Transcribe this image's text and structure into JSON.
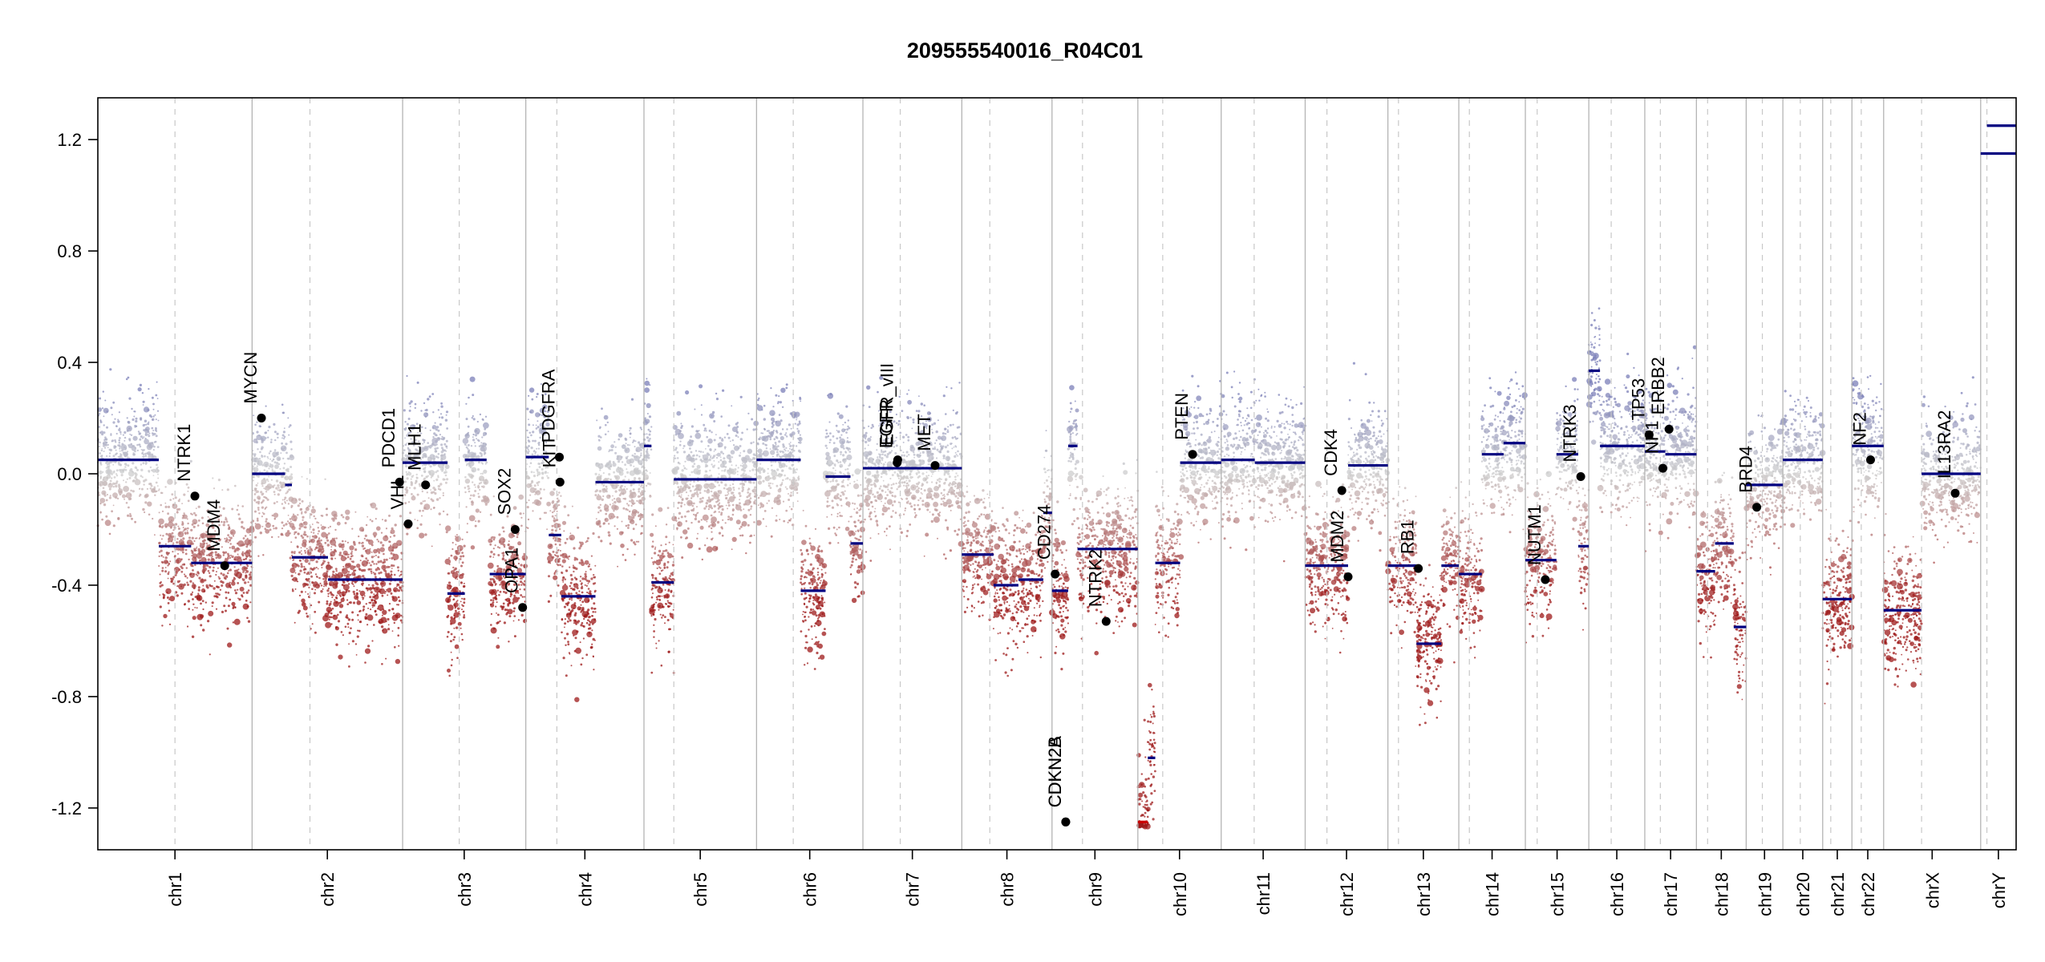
{
  "chart_data": {
    "type": "scatter",
    "title": "209555540016_R04C01",
    "xlabel": "",
    "ylabel": "",
    "ylim": [
      -1.35,
      1.35
    ],
    "yticks": [
      -1.2,
      -0.8,
      -0.4,
      0.0,
      0.4,
      0.8,
      1.2
    ],
    "ytick_labels": [
      "-1.2",
      "-0.8",
      "-0.4",
      "0.0",
      "0.4",
      "0.8",
      "1.2"
    ],
    "grid": false,
    "legend": "none",
    "colors": {
      "gain": "#7b7fb8",
      "neutral": "#c8c8c8",
      "loss": "#9e1a1a",
      "segment": "#000080",
      "boundary": "#b4b4b4"
    },
    "chromosomes": [
      {
        "name": "chr1",
        "start": 0,
        "end": 248,
        "centromere": 124
      },
      {
        "name": "chr2",
        "start": 248,
        "end": 490,
        "centromere": 341
      },
      {
        "name": "chr3",
        "start": 490,
        "end": 688,
        "centromere": 581
      },
      {
        "name": "chr4",
        "start": 688,
        "end": 878,
        "centromere": 738
      },
      {
        "name": "chr5",
        "start": 878,
        "end": 1059,
        "centromere": 926
      },
      {
        "name": "chr6",
        "start": 1059,
        "end": 1230,
        "centromere": 1118
      },
      {
        "name": "chr7",
        "start": 1230,
        "end": 1389,
        "centromere": 1290
      },
      {
        "name": "chr8",
        "start": 1389,
        "end": 1534,
        "centromere": 1434
      },
      {
        "name": "chr9",
        "start": 1534,
        "end": 1672,
        "centromere": 1583
      },
      {
        "name": "chr10",
        "start": 1672,
        "end": 1806,
        "centromere": 1712
      },
      {
        "name": "chr11",
        "start": 1806,
        "end": 1941,
        "centromere": 1859
      },
      {
        "name": "chr12",
        "start": 1941,
        "end": 2074,
        "centromere": 1976
      },
      {
        "name": "chr13",
        "start": 2074,
        "end": 2188,
        "centromere": 2091
      },
      {
        "name": "chr14",
        "start": 2188,
        "end": 2295,
        "centromere": 2205
      },
      {
        "name": "chr15",
        "start": 2295,
        "end": 2397,
        "centromere": 2314
      },
      {
        "name": "chr16",
        "start": 2397,
        "end": 2487,
        "centromere": 2433
      },
      {
        "name": "chr17",
        "start": 2487,
        "end": 2570,
        "centromere": 2512
      },
      {
        "name": "chr18",
        "start": 2570,
        "end": 2650,
        "centromere": 2588
      },
      {
        "name": "chr19",
        "start": 2650,
        "end": 2709,
        "centromere": 2676
      },
      {
        "name": "chr20",
        "start": 2709,
        "end": 2773,
        "centromere": 2737
      },
      {
        "name": "chr21",
        "start": 2773,
        "end": 2820,
        "centromere": 2786
      },
      {
        "name": "chr22",
        "start": 2820,
        "end": 2871,
        "centromere": 2835
      },
      {
        "name": "chrX",
        "start": 2871,
        "end": 3027,
        "centromere": 2932
      },
      {
        "name": "chrY",
        "start": 3027,
        "end": 3084,
        "centromere": 3037
      }
    ],
    "segments": [
      {
        "start": 0,
        "end": 98,
        "value": 0.05
      },
      {
        "start": 98,
        "end": 150,
        "value": -0.26
      },
      {
        "start": 150,
        "end": 248,
        "value": -0.32
      },
      {
        "start": 248,
        "end": 301,
        "value": 0.0
      },
      {
        "start": 301,
        "end": 312,
        "value": -0.04
      },
      {
        "start": 312,
        "end": 336,
        "value": -0.3
      },
      {
        "start": 336,
        "end": 370,
        "value": -0.3
      },
      {
        "start": 370,
        "end": 440,
        "value": -0.38
      },
      {
        "start": 440,
        "end": 490,
        "value": -0.38
      },
      {
        "start": 490,
        "end": 562,
        "value": 0.04
      },
      {
        "start": 562,
        "end": 590,
        "value": -0.43
      },
      {
        "start": 590,
        "end": 625,
        "value": 0.05
      },
      {
        "start": 630,
        "end": 688,
        "value": -0.36
      },
      {
        "start": 688,
        "end": 725,
        "value": 0.06
      },
      {
        "start": 725,
        "end": 745,
        "value": -0.22
      },
      {
        "start": 745,
        "end": 800,
        "value": -0.44
      },
      {
        "start": 800,
        "end": 878,
        "value": -0.03
      },
      {
        "start": 878,
        "end": 890,
        "value": 0.1
      },
      {
        "start": 890,
        "end": 926,
        "value": -0.39
      },
      {
        "start": 926,
        "end": 1059,
        "value": -0.02
      },
      {
        "start": 1059,
        "end": 1130,
        "value": 0.05
      },
      {
        "start": 1130,
        "end": 1170,
        "value": -0.42
      },
      {
        "start": 1170,
        "end": 1210,
        "value": -0.01
      },
      {
        "start": 1210,
        "end": 1230,
        "value": -0.25
      },
      {
        "start": 1230,
        "end": 1389,
        "value": 0.02
      },
      {
        "start": 1389,
        "end": 1440,
        "value": -0.29
      },
      {
        "start": 1440,
        "end": 1480,
        "value": -0.4
      },
      {
        "start": 1480,
        "end": 1520,
        "value": -0.38
      },
      {
        "start": 1520,
        "end": 1534,
        "value": -0.14
      },
      {
        "start": 1534,
        "end": 1560,
        "value": -0.42
      },
      {
        "start": 1560,
        "end": 1575,
        "value": 0.1
      },
      {
        "start": 1575,
        "end": 1672,
        "value": -0.27
      },
      {
        "start": 1672,
        "end": 1688,
        "value": -1.25
      },
      {
        "start": 1688,
        "end": 1700,
        "value": -1.02
      },
      {
        "start": 1700,
        "end": 1740,
        "value": -0.32
      },
      {
        "start": 1740,
        "end": 1806,
        "value": 0.04
      },
      {
        "start": 1806,
        "end": 1860,
        "value": 0.05
      },
      {
        "start": 1860,
        "end": 1941,
        "value": 0.04
      },
      {
        "start": 1941,
        "end": 2010,
        "value": -0.33
      },
      {
        "start": 2010,
        "end": 2074,
        "value": 0.03
      },
      {
        "start": 2074,
        "end": 2120,
        "value": -0.33
      },
      {
        "start": 2120,
        "end": 2160,
        "value": -0.61
      },
      {
        "start": 2160,
        "end": 2188,
        "value": -0.33
      },
      {
        "start": 2188,
        "end": 2225,
        "value": -0.36
      },
      {
        "start": 2225,
        "end": 2260,
        "value": 0.07
      },
      {
        "start": 2260,
        "end": 2295,
        "value": 0.11
      },
      {
        "start": 2295,
        "end": 2345,
        "value": -0.31
      },
      {
        "start": 2345,
        "end": 2380,
        "value": 0.07
      },
      {
        "start": 2380,
        "end": 2397,
        "value": -0.26
      },
      {
        "start": 2397,
        "end": 2415,
        "value": 0.37
      },
      {
        "start": 2415,
        "end": 2487,
        "value": 0.1
      },
      {
        "start": 2487,
        "end": 2520,
        "value": 0.08
      },
      {
        "start": 2520,
        "end": 2570,
        "value": 0.07
      },
      {
        "start": 2570,
        "end": 2600,
        "value": -0.35
      },
      {
        "start": 2600,
        "end": 2630,
        "value": -0.25
      },
      {
        "start": 2630,
        "end": 2650,
        "value": -0.55
      },
      {
        "start": 2650,
        "end": 2709,
        "value": -0.04
      },
      {
        "start": 2709,
        "end": 2773,
        "value": 0.05
      },
      {
        "start": 2773,
        "end": 2820,
        "value": -0.45
      },
      {
        "start": 2820,
        "end": 2871,
        "value": 0.1
      },
      {
        "start": 2871,
        "end": 2932,
        "value": -0.49
      },
      {
        "start": 2932,
        "end": 3027,
        "value": 0.0
      },
      {
        "start": 3027,
        "end": 3084,
        "value": 1.15
      },
      {
        "start": 3037,
        "end": 3084,
        "value": 1.25
      }
    ],
    "genes": [
      {
        "name": "NTRK1",
        "pos": 156,
        "value": -0.08
      },
      {
        "name": "MDM4",
        "pos": 204,
        "value": -0.33
      },
      {
        "name": "MYCN",
        "pos": 263,
        "value": 0.2
      },
      {
        "name": "PDCD1",
        "pos": 485,
        "value": -0.03
      },
      {
        "name": "VHL",
        "pos": 499,
        "value": -0.18
      },
      {
        "name": "MLH1",
        "pos": 527,
        "value": -0.04
      },
      {
        "name": "SOX2",
        "pos": 671,
        "value": -0.2
      },
      {
        "name": "OPA1",
        "pos": 683,
        "value": -0.48
      },
      {
        "name": "KIT",
        "pos": 743,
        "value": -0.03
      },
      {
        "name": "PDGFRA",
        "pos": 742,
        "value": 0.06
      },
      {
        "name": "EGFR",
        "pos": 1285,
        "value": 0.04
      },
      {
        "name": "EGFR_vIII",
        "pos": 1286,
        "value": 0.05
      },
      {
        "name": "MET",
        "pos": 1346,
        "value": 0.03
      },
      {
        "name": "CD274",
        "pos": 1539,
        "value": -0.36
      },
      {
        "name": "CDKN2B",
        "pos": 1556,
        "value": -1.25
      },
      {
        "name": "CDKN2A",
        "pos": 1556,
        "value": -1.25
      },
      {
        "name": "NTRK2",
        "pos": 1621,
        "value": -0.53
      },
      {
        "name": "PTEN",
        "pos": 1760,
        "value": 0.07
      },
      {
        "name": "CDK4",
        "pos": 2000,
        "value": -0.06
      },
      {
        "name": "MDM2",
        "pos": 2010,
        "value": -0.37
      },
      {
        "name": "RB1",
        "pos": 2123,
        "value": -0.34
      },
      {
        "name": "NUTM1",
        "pos": 2327,
        "value": -0.38
      },
      {
        "name": "NTRK3",
        "pos": 2384,
        "value": -0.01
      },
      {
        "name": "TP53",
        "pos": 2494,
        "value": 0.14
      },
      {
        "name": "NF1",
        "pos": 2516,
        "value": 0.02
      },
      {
        "name": "ERBB2",
        "pos": 2526,
        "value": 0.16
      },
      {
        "name": "BRD4",
        "pos": 2667,
        "value": -0.12
      },
      {
        "name": "NF2",
        "pos": 2850,
        "value": 0.05
      },
      {
        "name": "IL13RA2",
        "pos": 2986,
        "value": -0.07
      }
    ]
  }
}
